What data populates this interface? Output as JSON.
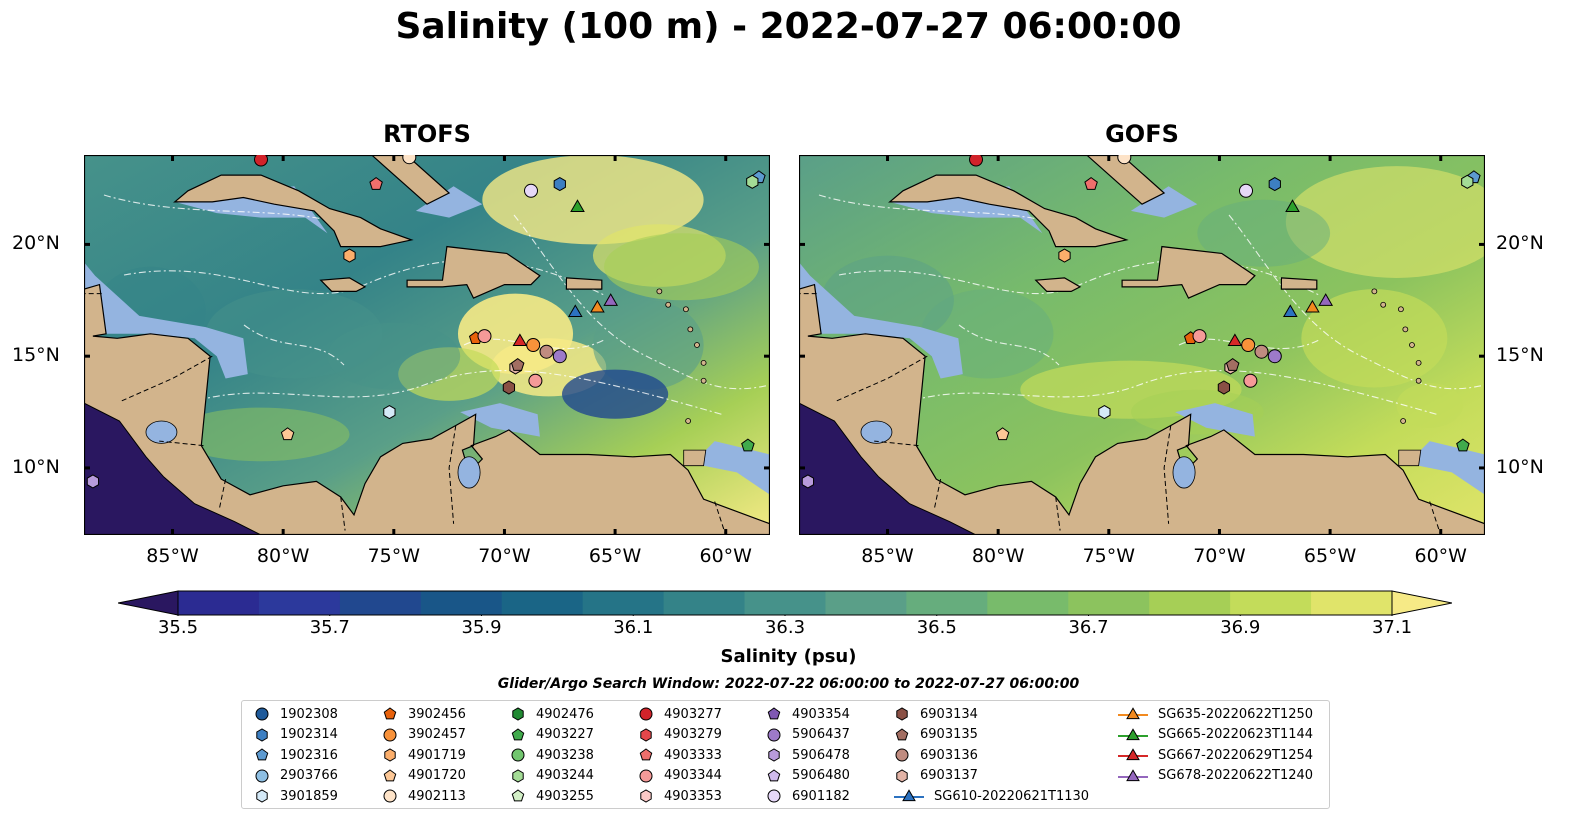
{
  "title": "Salinity (100 m) - 2022-07-27 06:00:00",
  "panels": [
    {
      "title": "RTOFS",
      "palette": "rtofs"
    },
    {
      "title": "GOFS",
      "palette": "gofs"
    }
  ],
  "map_extent": {
    "lon": [
      -89,
      -58
    ],
    "lat": [
      7,
      24
    ]
  },
  "lon_ticks": [
    {
      "value": -85,
      "label": "85°W"
    },
    {
      "value": -80,
      "label": "80°W"
    },
    {
      "value": -75,
      "label": "75°W"
    },
    {
      "value": -70,
      "label": "70°W"
    },
    {
      "value": -65,
      "label": "65°W"
    },
    {
      "value": -60,
      "label": "60°W"
    }
  ],
  "lat_ticks": [
    {
      "value": 20,
      "label": "20°N"
    },
    {
      "value": 15,
      "label": "15°N"
    },
    {
      "value": 10,
      "label": "10°N"
    }
  ],
  "colorbar": {
    "label": "Salinity (psu)",
    "range": [
      35.5,
      37.1
    ],
    "ticks": [
      "35.5",
      "35.7",
      "35.9",
      "36.1",
      "36.3",
      "36.5",
      "36.7",
      "36.9",
      "37.1"
    ],
    "colors": [
      "#2a1760",
      "#2b2b92",
      "#2c399c",
      "#21488f",
      "#195688",
      "#1a6586",
      "#257487",
      "#348388",
      "#46928a",
      "#5a9f88",
      "#66ad7d",
      "#78bb6b",
      "#8cc35e",
      "#a6cf56",
      "#c3dc5a",
      "#e0e46a",
      "#f6ea86"
    ],
    "extend": "both"
  },
  "colors": {
    "land": "#d2b48c",
    "shallow": "#94b4e0",
    "deep_low": "#2a1760"
  },
  "search_window": "Glider/Argo Search Window: 2022-07-22 06:00:00 to 2022-07-27 06:00:00",
  "legend": [
    {
      "label": "1902308",
      "marker": "circle",
      "color": "#1f5a9a"
    },
    {
      "label": "1902314",
      "marker": "hexagon",
      "color": "#3d7fc2"
    },
    {
      "label": "1902316",
      "marker": "pentagon",
      "color": "#5d9ad0"
    },
    {
      "label": "2903766",
      "marker": "circle",
      "color": "#8ebfe3"
    },
    {
      "label": "3901859",
      "marker": "hexagon",
      "color": "#d4e9f7"
    },
    {
      "label": "3902456",
      "marker": "pentagon",
      "color": "#e8620c"
    },
    {
      "label": "3902457",
      "marker": "circle",
      "color": "#f9923a"
    },
    {
      "label": "4901719",
      "marker": "hexagon",
      "color": "#fbae6b"
    },
    {
      "label": "4901720",
      "marker": "pentagon",
      "color": "#fcc796"
    },
    {
      "label": "4902113",
      "marker": "circle",
      "color": "#fde3c8"
    },
    {
      "label": "4902476",
      "marker": "hexagon",
      "color": "#218a33"
    },
    {
      "label": "4903227",
      "marker": "pentagon",
      "color": "#40ab4c"
    },
    {
      "label": "4903238",
      "marker": "circle",
      "color": "#72c66f"
    },
    {
      "label": "4903244",
      "marker": "hexagon",
      "color": "#a4dc96"
    },
    {
      "label": "4903255",
      "marker": "pentagon",
      "color": "#d3f0c7"
    },
    {
      "label": "4903277",
      "marker": "circle",
      "color": "#d1232a"
    },
    {
      "label": "4903279",
      "marker": "hexagon",
      "color": "#e3474b"
    },
    {
      "label": "4903333",
      "marker": "pentagon",
      "color": "#ef6f6c"
    },
    {
      "label": "4903344",
      "marker": "circle",
      "color": "#f59a98"
    },
    {
      "label": "4903353",
      "marker": "hexagon",
      "color": "#fbcac7"
    },
    {
      "label": "4903354",
      "marker": "pentagon",
      "color": "#7f58b2"
    },
    {
      "label": "5906437",
      "marker": "circle",
      "color": "#9d7ac9"
    },
    {
      "label": "5906478",
      "marker": "hexagon",
      "color": "#b89bdc"
    },
    {
      "label": "5906480",
      "marker": "pentagon",
      "color": "#d0bbec"
    },
    {
      "label": "6901182",
      "marker": "circle",
      "color": "#e6d8f8"
    },
    {
      "label": "6903134",
      "marker": "hexagon",
      "color": "#8a5045"
    },
    {
      "label": "6903135",
      "marker": "pentagon",
      "color": "#a36e62"
    },
    {
      "label": "6903136",
      "marker": "circle",
      "color": "#c08c80"
    },
    {
      "label": "6903137",
      "marker": "hexagon",
      "color": "#e2b3a6"
    },
    {
      "label": "SG610-20220621T1130",
      "marker": "glider",
      "color": "#2c72c0"
    },
    {
      "label": "SG635-20220622T1250",
      "marker": "glider",
      "color": "#f28a1f"
    },
    {
      "label": "SG665-20220623T1144",
      "marker": "glider",
      "color": "#2ca02c"
    },
    {
      "label": "SG667-20220629T1254",
      "marker": "glider",
      "color": "#d62728"
    },
    {
      "label": "SG678-20220622T1240",
      "marker": "glider",
      "color": "#9467bd"
    }
  ],
  "observations": [
    {
      "id": "4903277",
      "lon": -81.0,
      "lat": 23.8
    },
    {
      "id": "4903333",
      "lon": -75.8,
      "lat": 22.7
    },
    {
      "id": "4902113",
      "lon": -74.3,
      "lat": 23.9
    },
    {
      "id": "6901182",
      "lon": -68.8,
      "lat": 22.4
    },
    {
      "id": "1902314",
      "lon": -67.5,
      "lat": 22.7
    },
    {
      "id": "SG665-20220623T1144",
      "lon": -66.7,
      "lat": 21.7
    },
    {
      "id": "1902316",
      "lon": -58.5,
      "lat": 23.0
    },
    {
      "id": "4903244",
      "lon": -58.8,
      "lat": 22.8
    },
    {
      "id": "4901719",
      "lon": -77.0,
      "lat": 19.5
    },
    {
      "id": "SG610-20220621T1130",
      "lon": -66.8,
      "lat": 17.0
    },
    {
      "id": "SG635-20220622T1250",
      "lon": -65.8,
      "lat": 17.2
    },
    {
      "id": "SG678-20220622T1240",
      "lon": -65.2,
      "lat": 17.5
    },
    {
      "id": "3902456",
      "lon": -71.3,
      "lat": 15.8
    },
    {
      "id": "4903344",
      "lon": -70.9,
      "lat": 15.9
    },
    {
      "id": "SG667-20220629T1254",
      "lon": -69.3,
      "lat": 15.7
    },
    {
      "id": "3902457",
      "lon": -68.7,
      "lat": 15.5
    },
    {
      "id": "6903136",
      "lon": -68.1,
      "lat": 15.2
    },
    {
      "id": "5906437",
      "lon": -67.5,
      "lat": 15.0
    },
    {
      "id": "6903137",
      "lon": -69.5,
      "lat": 14.5
    },
    {
      "id": "6903135",
      "lon": -69.4,
      "lat": 14.6
    },
    {
      "id": "6903134",
      "lon": -69.8,
      "lat": 13.6
    },
    {
      "id": "4903344",
      "lon": -68.6,
      "lat": 13.9
    },
    {
      "id": "3901859",
      "lon": -75.2,
      "lat": 12.5
    },
    {
      "id": "4901720",
      "lon": -79.8,
      "lat": 11.5
    },
    {
      "id": "4903227",
      "lon": -59.0,
      "lat": 11.0
    },
    {
      "id": "5906478",
      "lon": -88.6,
      "lat": 9.4
    }
  ]
}
